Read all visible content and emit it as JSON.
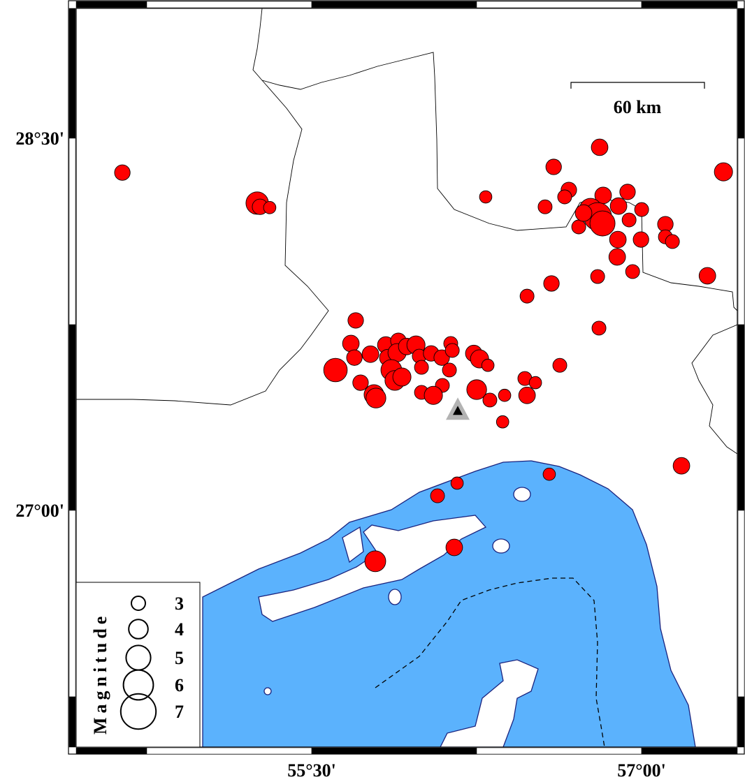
{
  "map": {
    "extent": {
      "lon": [
        54.429,
        57.435
      ],
      "lat": [
        26.046,
        29.024
      ]
    },
    "lat_labels": [
      {
        "lat": 28.5,
        "text": "28°30'"
      },
      {
        "lat": 27.0,
        "text": "27°00'"
      }
    ],
    "lon_labels": [
      {
        "lon": 55.5,
        "text": "55°30'"
      },
      {
        "lon": 57.0,
        "text": "57°00'"
      }
    ],
    "scale_bar": {
      "label": "60 km"
    },
    "colors": {
      "sea": "#5bb2fd",
      "land": "#ffffff",
      "event": "#ff0000",
      "coast": "#1a237e",
      "station_outer": "#b3b3b3",
      "station_inner": "#000000"
    },
    "station": {
      "lon": 56.164,
      "lat": 27.402,
      "icon": "triangle-station-icon"
    },
    "legend": {
      "title": "Magnitude",
      "items": [
        {
          "mag": 3,
          "label": "3"
        },
        {
          "mag": 4,
          "label": "4"
        },
        {
          "mag": 5,
          "label": "5"
        },
        {
          "mag": 6,
          "label": "6"
        },
        {
          "mag": 7,
          "label": "7"
        }
      ]
    },
    "events": [
      {
        "lon": 54.639,
        "lat": 28.362,
        "mag": 3.3
      },
      {
        "lon": 55.252,
        "lat": 28.239,
        "mag": 4.6
      },
      {
        "lon": 55.265,
        "lat": 28.224,
        "mag": 3.3
      },
      {
        "lon": 55.309,
        "lat": 28.221,
        "mag": 2.7
      },
      {
        "lon": 56.809,
        "lat": 28.464,
        "mag": 3.5
      },
      {
        "lon": 56.6,
        "lat": 28.385,
        "mag": 3.3
      },
      {
        "lon": 57.372,
        "lat": 28.365,
        "mag": 3.8
      },
      {
        "lon": 56.291,
        "lat": 28.264,
        "mag": 2.7
      },
      {
        "lon": 56.669,
        "lat": 28.292,
        "mag": 3.3
      },
      {
        "lon": 56.65,
        "lat": 28.264,
        "mag": 3.0
      },
      {
        "lon": 56.561,
        "lat": 28.224,
        "mag": 3.0
      },
      {
        "lon": 56.825,
        "lat": 28.27,
        "mag": 3.5
      },
      {
        "lon": 56.936,
        "lat": 28.284,
        "mag": 3.3
      },
      {
        "lon": 57.0,
        "lat": 28.213,
        "mag": 3.0
      },
      {
        "lon": 56.768,
        "lat": 28.213,
        "mag": 4.6
      },
      {
        "lon": 56.8,
        "lat": 28.185,
        "mag": 5.6
      },
      {
        "lon": 56.822,
        "lat": 28.157,
        "mag": 5.1
      },
      {
        "lon": 56.895,
        "lat": 28.227,
        "mag": 3.5
      },
      {
        "lon": 56.943,
        "lat": 28.171,
        "mag": 3.0
      },
      {
        "lon": 56.714,
        "lat": 28.143,
        "mag": 3.0
      },
      {
        "lon": 56.736,
        "lat": 28.199,
        "mag": 3.5
      },
      {
        "lon": 57.108,
        "lat": 28.154,
        "mag": 3.3
      },
      {
        "lon": 57.108,
        "lat": 28.103,
        "mag": 3.0
      },
      {
        "lon": 57.14,
        "lat": 28.084,
        "mag": 3.0
      },
      {
        "lon": 56.997,
        "lat": 28.092,
        "mag": 3.3
      },
      {
        "lon": 56.892,
        "lat": 28.092,
        "mag": 3.5
      },
      {
        "lon": 56.889,
        "lat": 28.022,
        "mag": 3.5
      },
      {
        "lon": 56.959,
        "lat": 27.963,
        "mag": 3.0
      },
      {
        "lon": 56.8,
        "lat": 27.943,
        "mag": 3.0
      },
      {
        "lon": 56.59,
        "lat": 27.915,
        "mag": 3.3
      },
      {
        "lon": 56.479,
        "lat": 27.864,
        "mag": 3.0
      },
      {
        "lon": 57.299,
        "lat": 27.946,
        "mag": 3.5
      },
      {
        "lon": 56.806,
        "lat": 27.735,
        "mag": 3.0
      },
      {
        "lon": 57.181,
        "lat": 27.18,
        "mag": 3.5
      },
      {
        "lon": 56.58,
        "lat": 27.146,
        "mag": 2.7
      },
      {
        "lon": 55.7,
        "lat": 27.766,
        "mag": 3.3
      },
      {
        "lon": 55.678,
        "lat": 27.673,
        "mag": 3.5
      },
      {
        "lon": 55.694,
        "lat": 27.616,
        "mag": 3.3
      },
      {
        "lon": 55.608,
        "lat": 27.566,
        "mag": 4.8
      },
      {
        "lon": 55.767,
        "lat": 27.63,
        "mag": 3.5
      },
      {
        "lon": 55.722,
        "lat": 27.515,
        "mag": 3.3
      },
      {
        "lon": 55.783,
        "lat": 27.467,
        "mag": 4.1
      },
      {
        "lon": 55.792,
        "lat": 27.453,
        "mag": 4.1
      },
      {
        "lon": 55.837,
        "lat": 27.667,
        "mag": 3.5
      },
      {
        "lon": 55.846,
        "lat": 27.616,
        "mag": 3.5
      },
      {
        "lon": 55.894,
        "lat": 27.684,
        "mag": 3.3
      },
      {
        "lon": 55.888,
        "lat": 27.636,
        "mag": 3.8
      },
      {
        "lon": 55.932,
        "lat": 27.661,
        "mag": 3.5
      },
      {
        "lon": 55.974,
        "lat": 27.667,
        "mag": 3.8
      },
      {
        "lon": 55.989,
        "lat": 27.622,
        "mag": 3.0
      },
      {
        "lon": 55.862,
        "lat": 27.566,
        "mag": 4.3
      },
      {
        "lon": 55.878,
        "lat": 27.524,
        "mag": 4.1
      },
      {
        "lon": 55.91,
        "lat": 27.538,
        "mag": 3.8
      },
      {
        "lon": 55.999,
        "lat": 27.577,
        "mag": 3.0
      },
      {
        "lon": 56.043,
        "lat": 27.633,
        "mag": 3.3
      },
      {
        "lon": 56.091,
        "lat": 27.616,
        "mag": 3.3
      },
      {
        "lon": 56.132,
        "lat": 27.673,
        "mag": 3.0
      },
      {
        "lon": 56.139,
        "lat": 27.645,
        "mag": 3.0
      },
      {
        "lon": 56.126,
        "lat": 27.566,
        "mag": 3.0
      },
      {
        "lon": 56.094,
        "lat": 27.504,
        "mag": 3.0
      },
      {
        "lon": 55.999,
        "lat": 27.476,
        "mag": 3.0
      },
      {
        "lon": 56.053,
        "lat": 27.464,
        "mag": 3.8
      },
      {
        "lon": 56.237,
        "lat": 27.633,
        "mag": 3.5
      },
      {
        "lon": 56.263,
        "lat": 27.611,
        "mag": 3.8
      },
      {
        "lon": 56.301,
        "lat": 27.585,
        "mag": 2.7
      },
      {
        "lon": 56.25,
        "lat": 27.487,
        "mag": 4.1
      },
      {
        "lon": 56.31,
        "lat": 27.445,
        "mag": 3.0
      },
      {
        "lon": 56.377,
        "lat": 27.464,
        "mag": 2.7
      },
      {
        "lon": 56.469,
        "lat": 27.532,
        "mag": 3.0
      },
      {
        "lon": 56.517,
        "lat": 27.515,
        "mag": 2.7
      },
      {
        "lon": 56.479,
        "lat": 27.464,
        "mag": 3.5
      },
      {
        "lon": 56.628,
        "lat": 27.585,
        "mag": 3.0
      },
      {
        "lon": 56.368,
        "lat": 27.357,
        "mag": 2.7
      },
      {
        "lon": 56.161,
        "lat": 27.11,
        "mag": 2.7
      },
      {
        "lon": 56.072,
        "lat": 27.059,
        "mag": 3.0
      },
      {
        "lon": 56.148,
        "lat": 26.851,
        "mag": 3.5
      },
      {
        "lon": 55.789,
        "lat": 26.795,
        "mag": 4.3
      }
    ]
  }
}
